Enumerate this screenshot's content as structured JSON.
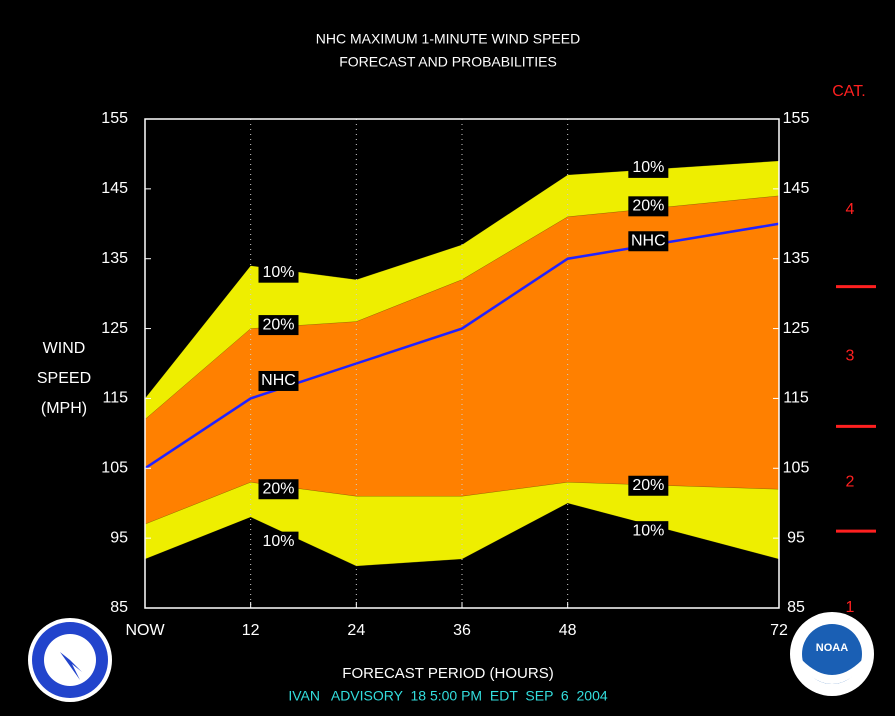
{
  "chart_data": {
    "type": "band-forecast",
    "title": "NHC MAXIMUM 1-MINUTE WIND SPEED",
    "subtitle": "FORECAST AND PROBABILITIES",
    "ylabel": [
      "WIND",
      "SPEED",
      "(MPH)"
    ],
    "xlabel": "FORECAST PERIOD (HOURS)",
    "footer": "IVAN   ADVISORY  18 5:00 PM  EDT  SEP  6  2004",
    "x": [
      0,
      12,
      24,
      36,
      48,
      72
    ],
    "xlim": [
      0,
      72
    ],
    "xticks": [
      {
        "value": 0,
        "label": "NOW"
      },
      12,
      24,
      36,
      48,
      72
    ],
    "ylim": [
      85,
      155
    ],
    "yticks": [
      85,
      95,
      105,
      115,
      125,
      135,
      145,
      155
    ],
    "y2lim": [
      85,
      155
    ],
    "y2ticks": [
      85,
      95,
      105,
      115,
      125,
      135,
      145,
      155
    ],
    "bands": [
      {
        "name": "10%",
        "color": "#eeee00",
        "upper": [
          115,
          134,
          132,
          137,
          147,
          149
        ],
        "lower": [
          92,
          98,
          91,
          92,
          100,
          92
        ]
      },
      {
        "name": "20%",
        "color": "#ff8000",
        "upper": [
          112,
          125,
          126,
          132,
          141,
          144
        ],
        "lower": [
          97,
          103,
          101,
          101,
          103,
          102
        ]
      }
    ],
    "series": [
      {
        "name": "NHC",
        "color": "#2222ff",
        "values": [
          105,
          115,
          120,
          125,
          135,
          140
        ]
      }
    ],
    "category_title": "CAT.",
    "category_bounds": [
      96,
      111,
      131
    ],
    "category_labels": [
      {
        "value": 85,
        "label": "1"
      },
      {
        "value": 103,
        "label": "2"
      },
      {
        "value": 121,
        "label": "3"
      },
      {
        "value": 142,
        "label": "4"
      }
    ]
  }
}
